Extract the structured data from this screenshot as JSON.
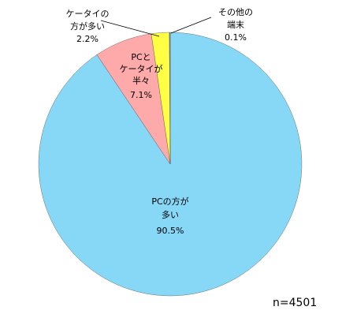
{
  "chart_data": {
    "type": "pie",
    "categories": [
      [
        "PCの方が",
        "多い"
      ],
      [
        "PCと",
        "ケータイが",
        "半々"
      ],
      [
        "ケータイの",
        "方が多い"
      ],
      [
        "その他の",
        "端末"
      ]
    ],
    "values": [
      90.5,
      7.1,
      2.2,
      0.1
    ],
    "value_labels": [
      "90.5%",
      "7.1%",
      "2.2%",
      "0.1%"
    ],
    "colors": [
      "#87d7f7",
      "#ffaaaa",
      "#ffff44",
      "#7f7fbf"
    ],
    "annotation": "n=4501"
  }
}
